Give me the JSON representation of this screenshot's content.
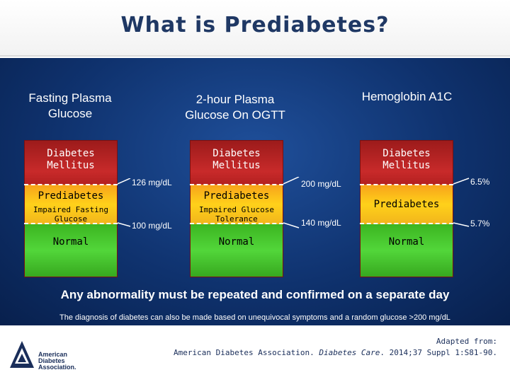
{
  "slide": {
    "title": "What is Prediabetes?"
  },
  "columns": [
    {
      "header_line1": "Fasting Plasma",
      "header_line2": "Glucose",
      "diabetes_line1": "Diabetes",
      "diabetes_line2": "Mellitus",
      "prediabetes": "Prediabetes",
      "prediabetes_sub_line1": "Impaired Fasting",
      "prediabetes_sub_line2": "Glucose",
      "normal": "Normal",
      "upper_threshold": "126 mg/dL",
      "lower_threshold": "100 mg/dL"
    },
    {
      "header_line1": "2-hour Plasma",
      "header_line2": "Glucose On OGTT",
      "diabetes_line1": "Diabetes",
      "diabetes_line2": "Mellitus",
      "prediabetes": "Prediabetes",
      "prediabetes_sub_line1": "Impaired Glucose",
      "prediabetes_sub_line2": "Tolerance",
      "normal": "Normal",
      "upper_threshold": "200 mg/dL",
      "lower_threshold": "140 mg/dL"
    },
    {
      "header_line1": "Hemoglobin A1C",
      "diabetes_line1": "Diabetes",
      "diabetes_line2": "Mellitus",
      "prediabetes": "Prediabetes",
      "normal": "Normal",
      "upper_threshold": "6.5%",
      "lower_threshold": "5.7%"
    }
  ],
  "notes": {
    "main": "Any abnormality must be repeated and confirmed on a separate day",
    "sub": "The diagnosis of diabetes can also be made based on unequivocal symptoms and a random glucose >200 mg/dL"
  },
  "footer": {
    "logo_line1": "American",
    "logo_line2": "Diabetes",
    "logo_line3": "Association.",
    "citation_line1": "Adapted from:",
    "citation_prefix": "American Diabetes Association. ",
    "citation_journal": "Diabetes Care",
    "citation_suffix": ". 2014;37 Suppl 1:S81-90."
  },
  "colors": {
    "title": "#1f3864",
    "panel": "#0f326e",
    "diabetes": "#c82a2a",
    "prediabetes": "#ffd11a",
    "normal": "#52d63a"
  },
  "icons": {
    "logo": "ada-triangle-logo"
  }
}
